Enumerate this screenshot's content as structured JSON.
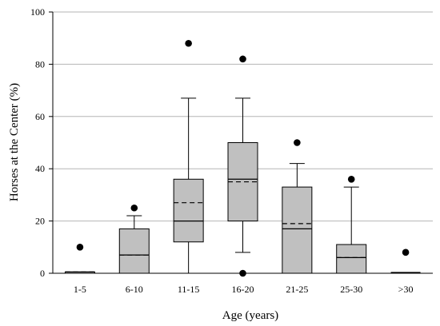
{
  "chart_data": {
    "type": "boxplot",
    "title": "",
    "xlabel": "Age (years)",
    "ylabel": "Horses at the Center (%)",
    "ylim": [
      0,
      100
    ],
    "yticks": [
      0,
      20,
      40,
      60,
      80,
      100
    ],
    "grid": "horizontal",
    "legend": "none",
    "colors": {
      "box_fill": "#c0c0c0",
      "stroke": "#000000",
      "grid": "#b5b5b5",
      "outlier": "#000000"
    },
    "categories": [
      "1-5",
      "6-10",
      "11-15",
      "16-20",
      "21-25",
      "25-30",
      ">30"
    ],
    "boxes": [
      {
        "category": "1-5",
        "whisker_low": 0,
        "q1": 0,
        "median": 0.5,
        "mean": 0.5,
        "q3": 0.5,
        "whisker_high": 0.5,
        "outliers": [
          10
        ]
      },
      {
        "category": "6-10",
        "whisker_low": 0,
        "q1": 0,
        "median": 7,
        "mean": 7,
        "q3": 17,
        "whisker_high": 22,
        "outliers": [
          25
        ]
      },
      {
        "category": "11-15",
        "whisker_low": 0,
        "q1": 12,
        "median": 20,
        "mean": 27,
        "q3": 36,
        "whisker_high": 67,
        "outliers": [
          88
        ]
      },
      {
        "category": "16-20",
        "whisker_low": 8,
        "q1": 20,
        "median": 36,
        "mean": 35,
        "q3": 50,
        "whisker_high": 67,
        "outliers": [
          82,
          0
        ]
      },
      {
        "category": "21-25",
        "whisker_low": 0,
        "q1": 0,
        "median": 17,
        "mean": 19,
        "q3": 33,
        "whisker_high": 42,
        "outliers": [
          50
        ]
      },
      {
        "category": "25-30",
        "whisker_low": 0,
        "q1": 0,
        "median": 6,
        "mean": 6,
        "q3": 11,
        "whisker_high": 33,
        "outliers": [
          36
        ]
      },
      {
        "category": ">30",
        "whisker_low": 0,
        "q1": 0,
        "median": 0.3,
        "mean": 0.3,
        "q3": 0.3,
        "whisker_high": 0.3,
        "outliers": [
          8
        ]
      }
    ]
  }
}
